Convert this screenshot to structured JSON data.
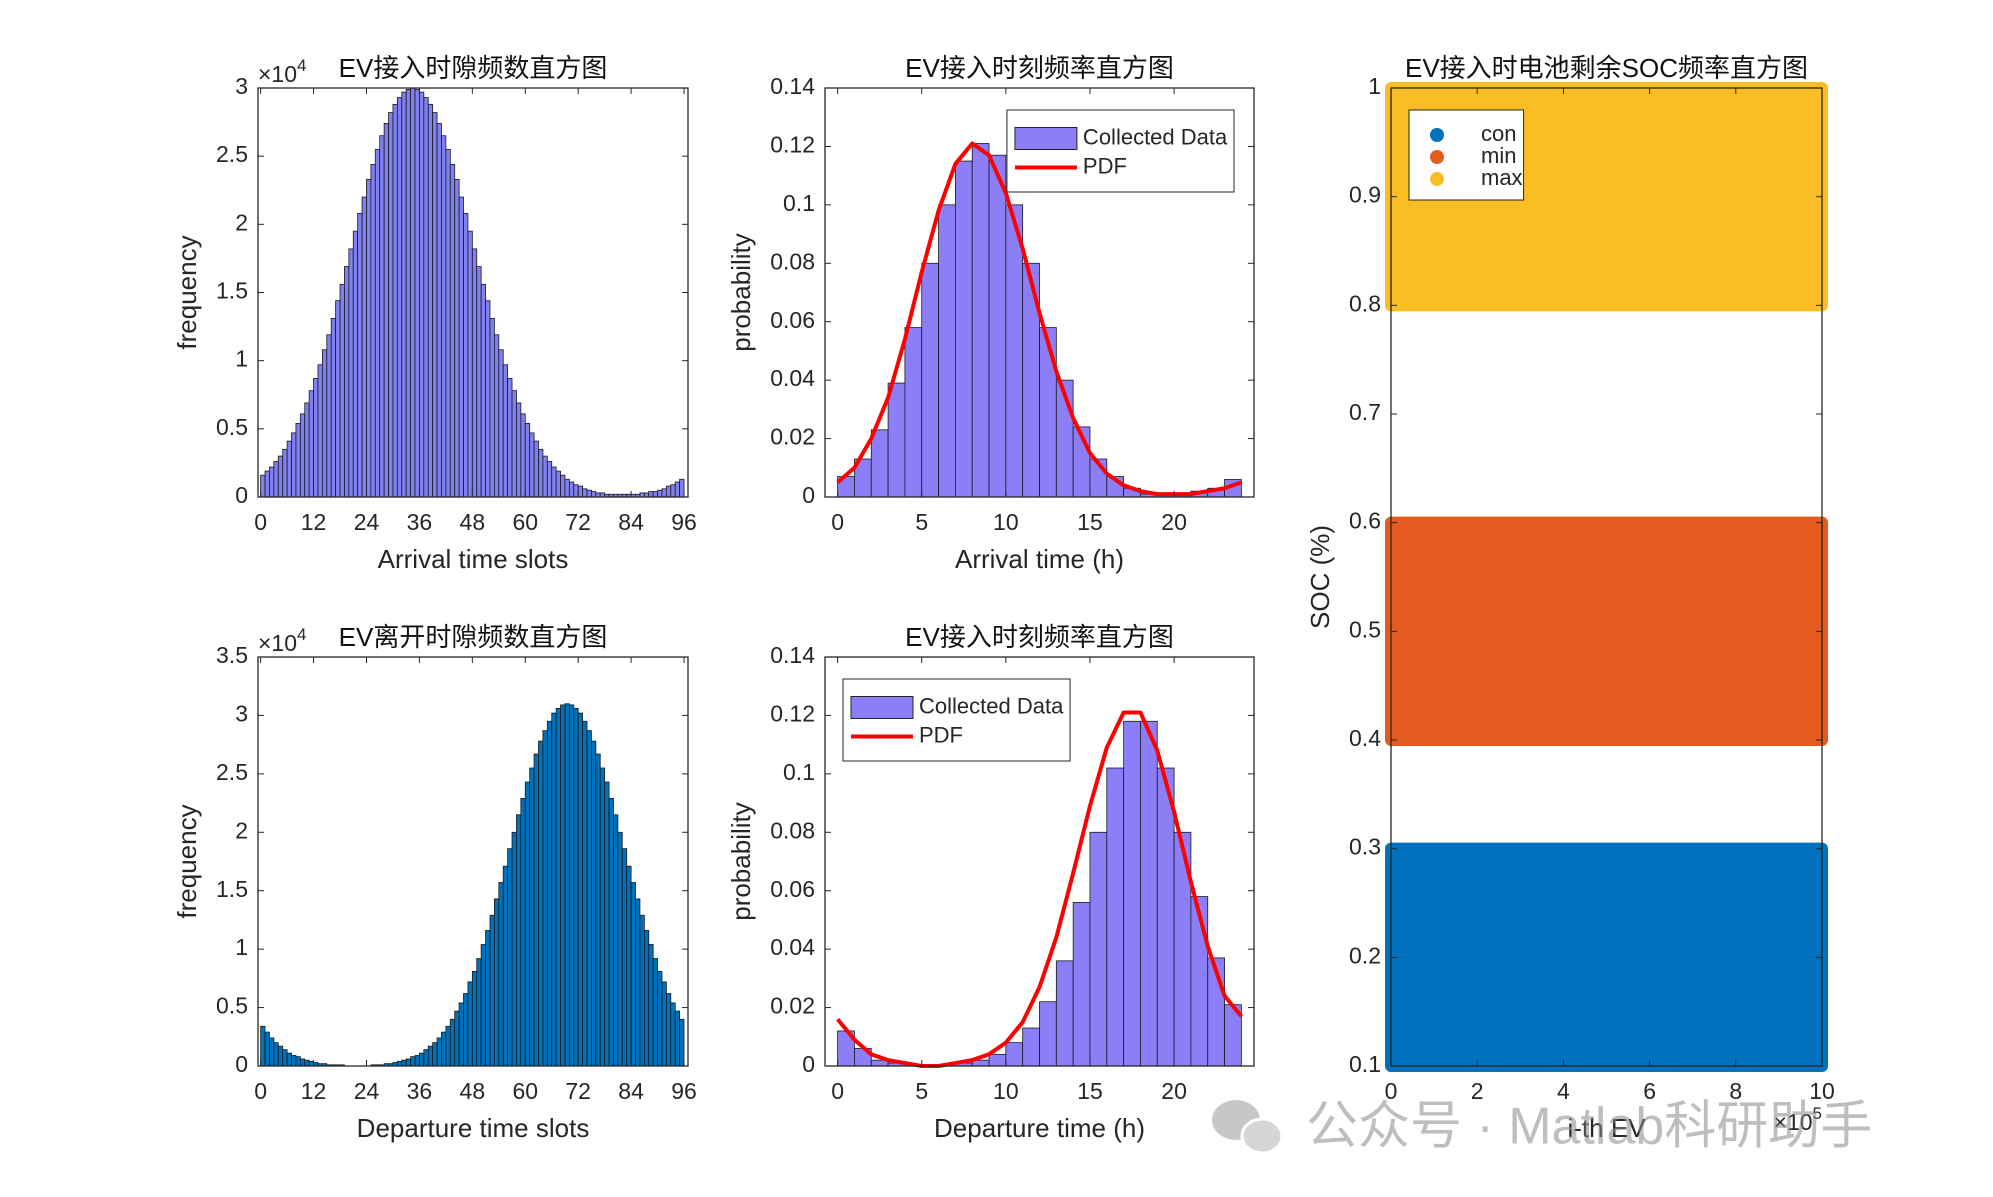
{
  "chart_data": [
    {
      "type": "histogram",
      "title": "EV接入时隙频数直方图",
      "y_multiplier": {
        "base": "×10",
        "power": "4"
      },
      "xlabel": "Arrival time slots",
      "ylabel": "frequency",
      "color": "#8080f2",
      "bins": [
        0,
        1,
        2,
        3,
        4,
        5,
        6,
        7,
        8,
        9,
        10,
        11,
        12,
        13,
        14,
        15,
        16,
        17,
        18,
        19,
        20,
        21,
        22,
        23,
        24,
        25,
        26,
        27,
        28,
        29,
        30,
        31,
        32,
        33,
        34,
        35,
        36,
        37,
        38,
        39,
        40,
        41,
        42,
        43,
        44,
        45,
        46,
        47,
        48,
        49,
        50,
        51,
        52,
        53,
        54,
        55,
        56,
        57,
        58,
        59,
        60,
        61,
        62,
        63,
        64,
        65,
        66,
        67,
        68,
        69,
        70,
        71,
        72,
        73,
        74,
        75,
        76,
        77,
        78,
        79,
        80,
        81,
        82,
        83,
        84,
        85,
        86,
        87,
        88,
        89,
        90,
        91,
        92,
        93,
        94,
        95,
        96
      ],
      "values": [
        0.16,
        0.19,
        0.22,
        0.26,
        0.3,
        0.35,
        0.41,
        0.47,
        0.54,
        0.61,
        0.69,
        0.78,
        0.87,
        0.97,
        1.08,
        1.19,
        1.31,
        1.44,
        1.56,
        1.69,
        1.82,
        1.95,
        2.08,
        2.2,
        2.33,
        2.44,
        2.55,
        2.65,
        2.74,
        2.82,
        2.88,
        2.93,
        2.97,
        2.99,
        3.0,
        2.99,
        2.97,
        2.93,
        2.88,
        2.82,
        2.74,
        2.65,
        2.55,
        2.44,
        2.33,
        2.2,
        2.08,
        1.95,
        1.82,
        1.69,
        1.56,
        1.44,
        1.31,
        1.19,
        1.08,
        0.97,
        0.87,
        0.78,
        0.69,
        0.61,
        0.54,
        0.47,
        0.41,
        0.35,
        0.3,
        0.26,
        0.22,
        0.19,
        0.16,
        0.13,
        0.11,
        0.09,
        0.08,
        0.06,
        0.05,
        0.04,
        0.03,
        0.03,
        0.02,
        0.02,
        0.02,
        0.02,
        0.02,
        0.02,
        0.02,
        0.02,
        0.03,
        0.03,
        0.04,
        0.04,
        0.05,
        0.06,
        0.08,
        0.09,
        0.11,
        0.13
      ],
      "xlim": [
        -0.6,
        96.9
      ],
      "xticks": [
        0,
        12,
        24,
        36,
        48,
        60,
        72,
        84,
        96
      ],
      "ylim": [
        0,
        3
      ],
      "yticks": [
        0,
        0.5,
        1,
        1.5,
        2,
        2.5,
        3
      ]
    },
    {
      "type": "histogram",
      "title": "EV接入时刻频率直方图",
      "xlabel": "Arrival time (h)",
      "ylabel": "probability",
      "legend": "northeast",
      "bins": [
        0,
        1,
        2,
        3,
        4,
        5,
        6,
        7,
        8,
        9,
        10,
        11,
        12,
        13,
        14,
        15,
        16,
        17,
        18,
        19,
        20,
        21,
        22,
        23,
        24
      ],
      "series": [
        {
          "name": "Collected Data",
          "type": "histogram",
          "color": "#8c7ef6",
          "values": [
            0.007,
            0.013,
            0.023,
            0.039,
            0.058,
            0.08,
            0.1,
            0.115,
            0.121,
            0.117,
            0.1,
            0.08,
            0.058,
            0.04,
            0.024,
            0.013,
            0.007,
            0.003,
            0.001,
            0.001,
            0.001,
            0.002,
            0.003,
            0.006
          ]
        },
        {
          "name": "PDF",
          "type": "line",
          "color": "#ff0000",
          "x": [
            0,
            1,
            2,
            3,
            4,
            5,
            6,
            7,
            8,
            9,
            10,
            11,
            12,
            13,
            14,
            15,
            16,
            17,
            18,
            19,
            20,
            21,
            22,
            23,
            24
          ],
          "values": [
            0.005,
            0.01,
            0.02,
            0.034,
            0.054,
            0.077,
            0.098,
            0.114,
            0.121,
            0.117,
            0.104,
            0.085,
            0.063,
            0.043,
            0.027,
            0.015,
            0.008,
            0.004,
            0.002,
            0.001,
            0.001,
            0.001,
            0.002,
            0.003,
            0.005
          ]
        }
      ],
      "xlim": [
        -0.75,
        24.75
      ],
      "xticks": [
        0,
        5,
        10,
        15,
        20
      ],
      "ylim": [
        0,
        0.14
      ],
      "yticks": [
        0,
        0.02,
        0.04,
        0.06,
        0.08,
        0.1,
        0.12,
        0.14
      ]
    },
    {
      "type": "histogram",
      "title": "EV离开时隙频数直方图",
      "y_multiplier": {
        "base": "×10",
        "power": "4"
      },
      "xlabel": "Departure time slots",
      "ylabel": "frequency",
      "color": "#0072bd",
      "bins": [
        0,
        1,
        2,
        3,
        4,
        5,
        6,
        7,
        8,
        9,
        10,
        11,
        12,
        13,
        14,
        15,
        16,
        17,
        18,
        19,
        20,
        21,
        22,
        23,
        24,
        25,
        26,
        27,
        28,
        29,
        30,
        31,
        32,
        33,
        34,
        35,
        36,
        37,
        38,
        39,
        40,
        41,
        42,
        43,
        44,
        45,
        46,
        47,
        48,
        49,
        50,
        51,
        52,
        53,
        54,
        55,
        56,
        57,
        58,
        59,
        60,
        61,
        62,
        63,
        64,
        65,
        66,
        67,
        68,
        69,
        70,
        71,
        72,
        73,
        74,
        75,
        76,
        77,
        78,
        79,
        80,
        81,
        82,
        83,
        84,
        85,
        86,
        87,
        88,
        89,
        90,
        91,
        92,
        93,
        94,
        95,
        96
      ],
      "values": [
        0.34,
        0.29,
        0.24,
        0.2,
        0.17,
        0.14,
        0.11,
        0.09,
        0.08,
        0.06,
        0.05,
        0.04,
        0.03,
        0.02,
        0.02,
        0.01,
        0.01,
        0.01,
        0.01,
        0,
        0,
        0,
        0,
        0,
        0,
        0.01,
        0.01,
        0.01,
        0.02,
        0.02,
        0.03,
        0.04,
        0.05,
        0.06,
        0.08,
        0.09,
        0.11,
        0.14,
        0.17,
        0.2,
        0.24,
        0.29,
        0.34,
        0.4,
        0.47,
        0.54,
        0.62,
        0.72,
        0.81,
        0.92,
        1.04,
        1.16,
        1.29,
        1.43,
        1.57,
        1.71,
        1.86,
        2.0,
        2.15,
        2.29,
        2.43,
        2.55,
        2.67,
        2.78,
        2.87,
        2.95,
        3.02,
        3.06,
        3.09,
        3.1,
        3.09,
        3.06,
        3.02,
        2.95,
        2.87,
        2.78,
        2.67,
        2.55,
        2.43,
        2.29,
        2.15,
        2.0,
        1.86,
        1.71,
        1.57,
        1.43,
        1.29,
        1.16,
        1.04,
        0.92,
        0.81,
        0.72,
        0.62,
        0.54,
        0.47,
        0.4
      ],
      "xlim": [
        -0.6,
        96.9
      ],
      "xticks": [
        0,
        12,
        24,
        36,
        48,
        60,
        72,
        84,
        96
      ],
      "ylim": [
        0,
        3.5
      ],
      "yticks": [
        0,
        0.5,
        1,
        1.5,
        2,
        2.5,
        3,
        3.5
      ]
    },
    {
      "type": "histogram",
      "title": "EV接入时刻频率直方图",
      "xlabel": "Departure time (h)",
      "ylabel": "probability",
      "legend": "northwest",
      "bins": [
        0,
        1,
        2,
        3,
        4,
        5,
        6,
        7,
        8,
        9,
        10,
        11,
        12,
        13,
        14,
        15,
        16,
        17,
        18,
        19,
        20,
        21,
        22,
        23,
        24
      ],
      "series": [
        {
          "name": "Collected Data",
          "type": "histogram",
          "color": "#8c7ef6",
          "values": [
            0.012,
            0.006,
            0.002,
            0.001,
            0,
            0,
            0,
            0.001,
            0.002,
            0.004,
            0.008,
            0.013,
            0.022,
            0.036,
            0.056,
            0.08,
            0.102,
            0.118,
            0.118,
            0.102,
            0.08,
            0.058,
            0.037,
            0.021
          ]
        },
        {
          "name": "PDF",
          "type": "line",
          "color": "#ff0000",
          "x": [
            0,
            1,
            2,
            3,
            4,
            5,
            6,
            7,
            8,
            9,
            10,
            11,
            12,
            13,
            14,
            15,
            16,
            17,
            18,
            19,
            20,
            21,
            22,
            23,
            24
          ],
          "values": [
            0.016,
            0.009,
            0.004,
            0.002,
            0.001,
            0,
            0,
            0.001,
            0.002,
            0.004,
            0.008,
            0.015,
            0.027,
            0.044,
            0.066,
            0.089,
            0.109,
            0.121,
            0.121,
            0.108,
            0.087,
            0.063,
            0.041,
            0.024,
            0.017
          ]
        }
      ],
      "xlim": [
        -0.75,
        24.75
      ],
      "xticks": [
        0,
        5,
        10,
        15,
        20
      ],
      "ylim": [
        0,
        0.14
      ],
      "yticks": [
        0,
        0.02,
        0.04,
        0.06,
        0.08,
        0.1,
        0.12,
        0.14
      ]
    },
    {
      "type": "band-scatter",
      "title": "EV接入时电池剩余SOC频率直方图",
      "xlabel": "i-th EV",
      "ylabel": "SOC (%)",
      "legend": "northwest",
      "x_multiplier": {
        "base": "×10",
        "power": "5"
      },
      "series": [
        {
          "name": "con",
          "color": "#0072bd",
          "range": [
            0.1,
            0.3
          ]
        },
        {
          "name": "min",
          "color": "#e35b1e",
          "range": [
            0.4,
            0.6
          ]
        },
        {
          "name": "max",
          "color": "#fbbd24",
          "range": [
            0.8,
            1
          ]
        }
      ],
      "xlim": [
        0,
        10
      ],
      "xticks": [
        0,
        2,
        4,
        6,
        8,
        10
      ],
      "ylim": [
        0.1,
        1
      ],
      "yticks": [
        0.1,
        0.2,
        0.3,
        0.4,
        0.5,
        0.6,
        0.7,
        0.8,
        0.9,
        1
      ]
    }
  ],
  "watermark": "公众号 · Matlab科研助手"
}
